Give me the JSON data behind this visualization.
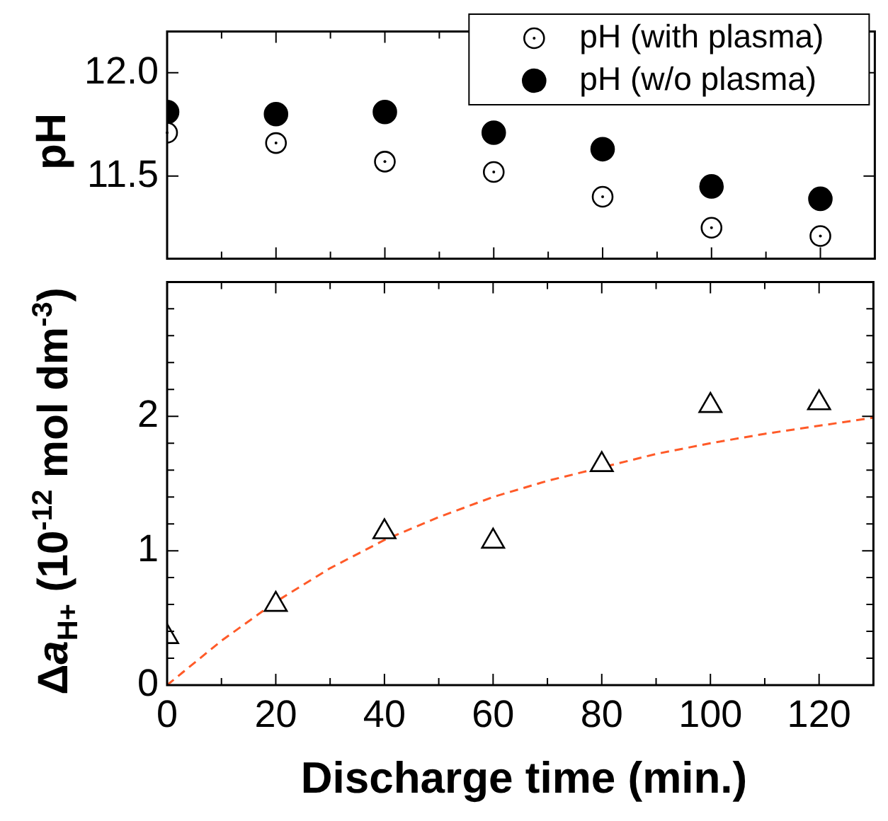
{
  "chart_data": [
    {
      "type": "scatter",
      "ylabel": "pH",
      "x": [
        0,
        20,
        40,
        60,
        80,
        100,
        120
      ],
      "series": [
        {
          "name": "pH (with plasma)",
          "color": "#000000",
          "marker": "circle",
          "values": [
            11.71,
            11.66,
            11.57,
            11.52,
            11.4,
            11.25,
            11.21
          ]
        },
        {
          "name": "pH (w/o plasma)",
          "color": "#000000",
          "marker": "circle",
          "values": [
            11.81,
            11.8,
            11.81,
            11.71,
            11.63,
            11.45,
            11.39
          ]
        }
      ],
      "xlim": [
        0,
        130
      ],
      "xticks": [
        0,
        {
          "value": 10,
          "label": null
        },
        20,
        {
          "value": 30,
          "label": null
        },
        40,
        {
          "value": 50,
          "label": null
        },
        60,
        {
          "value": 70,
          "label": null
        },
        80,
        {
          "value": 90,
          "label": null
        },
        100,
        {
          "value": 110,
          "label": null
        },
        120
      ],
      "ylim": [
        11.1,
        12.2
      ],
      "yticks": [
        11.5,
        {
          "value": 12,
          "label": "12.0"
        }
      ],
      "tick_labels": "y",
      "legend": "top right"
    },
    {
      "type": "scatter",
      "xlabel": "Discharge time  (min.)",
      "ylabel": "Δa$_{H+}$ (10$^{-12}$ mol dm$^{-3}$)",
      "x": [
        0,
        20,
        40,
        60,
        80,
        100,
        120
      ],
      "series": [
        {
          "color": "#000000",
          "marker": "triangle",
          "values": [
            0.36,
            0.6,
            1.14,
            1.07,
            1.64,
            2.08,
            2.1
          ]
        },
        {
          "type": "line",
          "color": "#ff5a28",
          "line_style": "dashed",
          "marker": "none",
          "x": [
            0,
            10,
            20,
            30,
            40,
            50,
            60,
            70,
            80,
            90,
            100,
            110,
            120,
            130
          ],
          "values": [
            0,
            0.33,
            0.62,
            0.87,
            1.08,
            1.25,
            1.4,
            1.52,
            1.62,
            1.72,
            1.8,
            1.87,
            1.93,
            1.99
          ]
        }
      ],
      "xlim": [
        0,
        130
      ],
      "xticks": [
        0,
        {
          "value": 10,
          "label": null
        },
        20,
        {
          "value": 30,
          "label": null
        },
        40,
        {
          "value": 50,
          "label": null
        },
        60,
        {
          "value": 70,
          "label": null
        },
        80,
        {
          "value": 90,
          "label": null
        },
        100,
        {
          "value": 110,
          "label": null
        },
        120
      ],
      "ylim": [
        0,
        3
      ],
      "yticks": [
        0,
        {
          "value": 0.2,
          "label": null
        },
        {
          "value": 0.4,
          "label": null
        },
        {
          "value": 0.6,
          "label": null
        },
        {
          "value": 0.8,
          "label": null
        },
        1,
        {
          "value": 1.2,
          "label": null
        },
        {
          "value": 1.4,
          "label": null
        },
        {
          "value": 1.6,
          "label": null
        },
        {
          "value": 1.8,
          "label": null
        },
        2,
        {
          "value": 2.2,
          "label": null
        },
        {
          "value": 2.4,
          "label": null
        },
        {
          "value": 2.6,
          "label": null
        },
        {
          "value": 2.8,
          "label": null
        }
      ]
    }
  ]
}
